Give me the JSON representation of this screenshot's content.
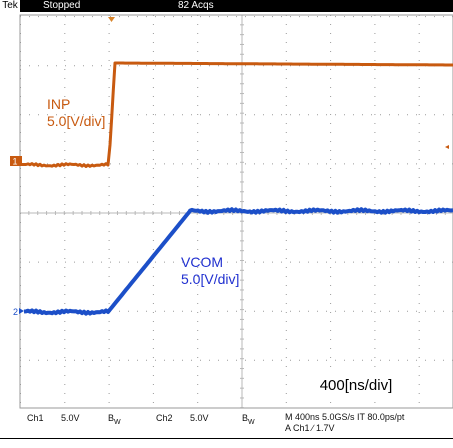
{
  "header": {
    "brand": "Tek",
    "state": "Stopped",
    "acquisitions": "82 Acqs"
  },
  "traces": {
    "inp": {
      "name": "INP",
      "scale": "5.0[V/div]",
      "color": "#c85a10"
    },
    "vcom": {
      "name": "VCOM",
      "scale": "5.0[V/div]",
      "color": "#1c4fc8"
    }
  },
  "markers": {
    "ch1_ground": "1",
    "ch2_ground": "2"
  },
  "timebase_label": "400[ns/div]",
  "status": {
    "ch1": "Ch1",
    "ch1_scale": "5.0V",
    "ch1_bw": "B",
    "ch1_bw_sub": "W",
    "ch2": "Ch2",
    "ch2_scale": "5.0V",
    "ch2_bw": "B",
    "ch2_bw_sub": "W",
    "horizontal": "M 400ns 5.0GS/s  IT 80.0ps/pt",
    "trigger": "A  Ch1  ∕  1.7V"
  }
}
